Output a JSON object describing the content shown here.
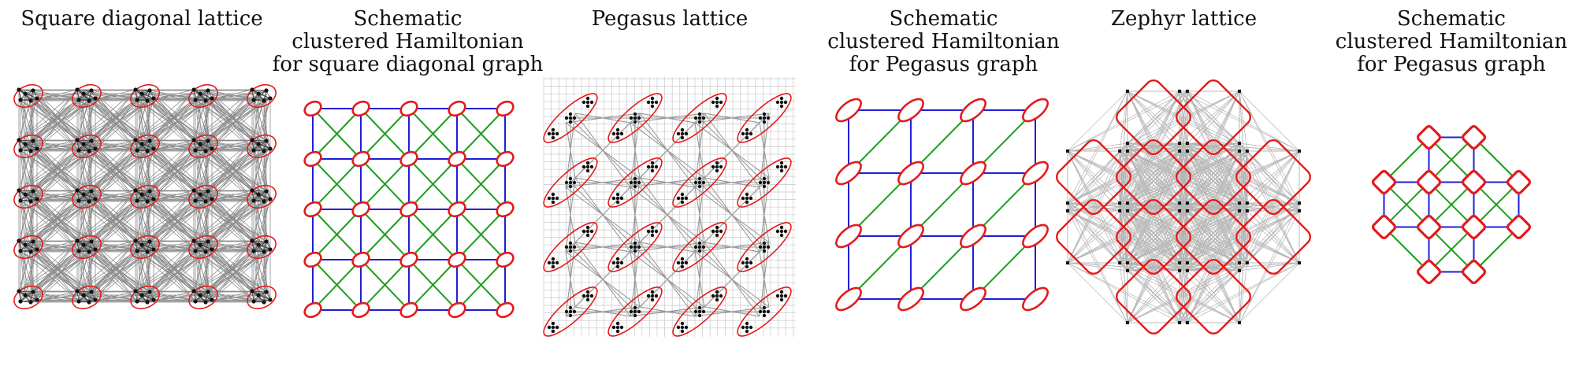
{
  "panels": [
    {
      "id": "square-diagonal",
      "title_lines": [
        "Square diagonal lattice"
      ]
    },
    {
      "id": "schematic-square",
      "title_lines": [
        "Schematic",
        "clustered Hamiltonian",
        "for square diagonal graph"
      ]
    },
    {
      "id": "pegasus",
      "title_lines": [
        "Pegasus lattice"
      ]
    },
    {
      "id": "schematic-pegasus",
      "title_lines": [
        "Schematic",
        "clustered Hamiltonian",
        "for Pegasus graph"
      ]
    },
    {
      "id": "zephyr",
      "title_lines": [
        "Zephyr lattice"
      ]
    },
    {
      "id": "schematic-zephyr",
      "title_lines": [
        "Schematic",
        "clustered Hamiltonian",
        "for Pegasus graph"
      ]
    }
  ],
  "colors": {
    "cluster": "#e41a1c",
    "grid_edge": "#1f1fd6",
    "diag_edge": "#1fa01f",
    "coupler": "#8c8c8c",
    "zephyr_coupler": "#b4b4b4",
    "qubit": "#111111"
  },
  "graphs": {
    "square_grid": {
      "rows": 5,
      "cols": 5,
      "diagonals": "both"
    },
    "pegasus_schematic": {
      "rows": 4,
      "cols": 4,
      "diagonals": "main"
    },
    "zephyr_schematic": {
      "layers": [
        2,
        4,
        4,
        2
      ]
    }
  }
}
